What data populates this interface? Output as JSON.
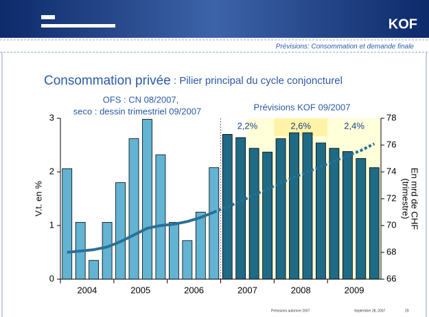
{
  "header": {
    "logo": "KOF",
    "subtitle": "Prévisions: Consommation et demande finale"
  },
  "footer": {
    "left": "Prévisions automne 2007",
    "date": "Septembre 28, 2007",
    "page": "29"
  },
  "chart_data": {
    "type": "bar",
    "title_main": "Consommation privée",
    "title_rest": " : Pilier principal du cycle conjoncturel",
    "annotations": [
      "OFS : CN 08/2007,",
      "seco : dessin trimestriel 09/2007",
      "Prévisions KOF 09/2007"
    ],
    "y_label": "V.t. en %",
    "y2_label": [
      "En mrd de CHF",
      "(trimestre)"
    ],
    "categories": [
      null,
      null,
      null,
      null,
      null,
      null,
      null,
      null,
      null,
      null,
      null,
      null,
      null,
      null,
      null,
      null,
      null,
      null,
      null,
      null,
      null,
      null,
      null,
      null
    ],
    "year_labels": [
      "2004",
      "2005",
      "2006",
      "2007",
      "2008",
      "2009"
    ],
    "annual_growth": {
      "values": [
        2.2,
        2.6,
        2.4
      ],
      "value_labels": [
        "2,2%",
        "2,6%",
        "2,4%"
      ]
    },
    "series": [
      {
        "color": "#63b3d3",
        "values": [
          2.06,
          1.06,
          0.35,
          1.06,
          1.8,
          2.62,
          2.98,
          2.32,
          1.06,
          0.72,
          1.25,
          2.08,
          null,
          null,
          null,
          null,
          null,
          null,
          null,
          null,
          null,
          null,
          null,
          null
        ]
      },
      {
        "color": "#1f6a85",
        "values": [
          null,
          null,
          null,
          null,
          null,
          null,
          null,
          null,
          null,
          null,
          null,
          null,
          2.7,
          2.64,
          2.44,
          2.37,
          2.62,
          2.73,
          2.73,
          2.54,
          2.44,
          2.38,
          2.25,
          2.08
        ]
      },
      {
        "color": "#2a6f96",
        "axis": "y2",
        "style": "solid",
        "values": [
          68.0,
          68.1,
          68.2,
          68.4,
          68.8,
          69.3,
          69.8,
          70.0,
          70.1,
          70.3,
          70.6,
          71.0,
          null,
          null,
          null,
          null,
          null,
          null,
          null,
          null,
          null,
          null,
          null,
          null
        ]
      },
      {
        "color": "#2a6f96",
        "axis": "y2",
        "style": "dotted",
        "values": [
          null,
          null,
          null,
          null,
          null,
          null,
          null,
          null,
          null,
          null,
          null,
          null,
          71.4,
          71.8,
          72.3,
          72.7,
          73.2,
          73.6,
          74.0,
          74.4,
          74.8,
          75.2,
          75.6,
          76.1
        ]
      }
    ],
    "ylim": [
      0,
      3
    ],
    "yticks": [
      0,
      1,
      2,
      3
    ],
    "y2lim": [
      66,
      78
    ],
    "y2ticks": [
      66,
      68,
      70,
      72,
      74,
      76,
      78
    ]
  }
}
